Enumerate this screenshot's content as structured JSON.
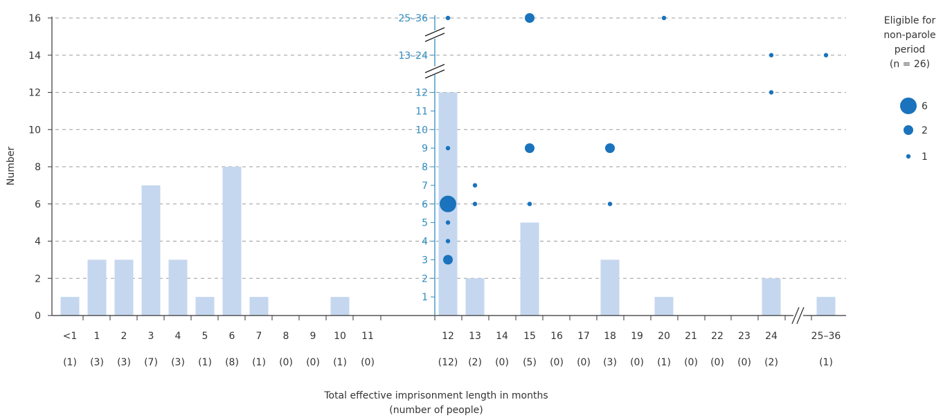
{
  "chart_data": {
    "type": "bar",
    "xlabel": "Total effective imprisonment length in months",
    "xlabel_sub": "(number of people)",
    "ylabel": "Number",
    "ylim": [
      0,
      16
    ],
    "yticks": [
      "0",
      "2",
      "4",
      "6",
      "8",
      "10",
      "12",
      "14",
      "16"
    ],
    "grid": true,
    "categories": [
      "<1",
      "1",
      "2",
      "3",
      "4",
      "5",
      "6",
      "7",
      "8",
      "9",
      "10",
      "11",
      "12",
      "13",
      "14",
      "15",
      "16",
      "17",
      "18",
      "19",
      "20",
      "21",
      "22",
      "23",
      "24",
      "25–36"
    ],
    "counts": [
      "(1)",
      "(3)",
      "(3)",
      "(7)",
      "(3)",
      "(1)",
      "(8)",
      "(1)",
      "(0)",
      "(0)",
      "(1)",
      "(0)",
      "(12)",
      "(2)",
      "(0)",
      "(5)",
      "(0)",
      "(0)",
      "(3)",
      "(0)",
      "(1)",
      "(0)",
      "(0)",
      "(0)",
      "(2)",
      "(1)"
    ],
    "values": [
      1,
      3,
      3,
      7,
      3,
      1,
      8,
      1,
      0,
      0,
      1,
      0,
      12,
      2,
      0,
      5,
      0,
      0,
      3,
      0,
      1,
      0,
      0,
      0,
      2,
      1
    ],
    "bar_color": "#c5d7ef",
    "secondary_axis": {
      "ticks": [
        "1",
        "2",
        "3",
        "4",
        "5",
        "6",
        "7",
        "8",
        "9",
        "10",
        "11",
        "12",
        "13–24",
        "25–36"
      ],
      "color": "#2e8cc0"
    },
    "bubbles": {
      "color": "#1a73bc",
      "points": [
        {
          "x": "12",
          "y": "25–36",
          "size": 1
        },
        {
          "x": "12",
          "y": "9",
          "size": 1
        },
        {
          "x": "12",
          "y": "6",
          "size": 6
        },
        {
          "x": "12",
          "y": "5",
          "size": 1
        },
        {
          "x": "12",
          "y": "4",
          "size": 1
        },
        {
          "x": "12",
          "y": "3",
          "size": 2
        },
        {
          "x": "13",
          "y": "7",
          "size": 1
        },
        {
          "x": "13",
          "y": "6",
          "size": 1
        },
        {
          "x": "15",
          "y": "25–36",
          "size": 2
        },
        {
          "x": "15",
          "y": "9",
          "size": 2
        },
        {
          "x": "15",
          "y": "6",
          "size": 1
        },
        {
          "x": "18",
          "y": "9",
          "size": 2
        },
        {
          "x": "18",
          "y": "6",
          "size": 1
        },
        {
          "x": "20",
          "y": "25–36",
          "size": 1
        },
        {
          "x": "24",
          "y": "13–24",
          "size": 1
        },
        {
          "x": "24",
          "y": "12",
          "size": 1
        },
        {
          "x": "25–36",
          "y": "13–24",
          "size": 1
        }
      ]
    },
    "legend": {
      "title_lines": [
        "Eligible for",
        "non-parole",
        "period",
        "(n = 26)"
      ],
      "entries": [
        {
          "label": "6",
          "size": 6
        },
        {
          "label": "2",
          "size": 2
        },
        {
          "label": "1",
          "size": 1
        }
      ],
      "placement": "right"
    }
  }
}
